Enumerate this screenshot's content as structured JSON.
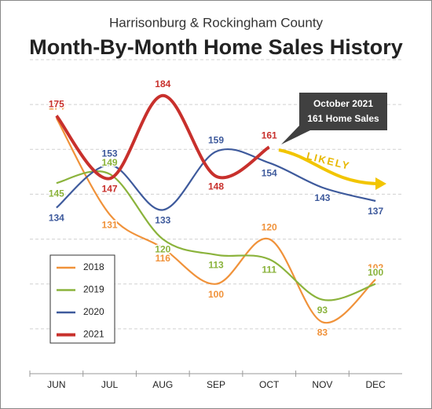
{
  "chart_data": {
    "type": "line",
    "title": "Month-By-Month Home Sales History",
    "subtitle": "Harrisonburg & Rockingham County",
    "categories": [
      "JUN",
      "JUL",
      "AUG",
      "SEP",
      "OCT",
      "NOV",
      "DEC"
    ],
    "series": [
      {
        "name": "2018",
        "color": "#f0923a",
        "values": [
          174,
          131,
          116,
          100,
          120,
          83,
          102
        ]
      },
      {
        "name": "2019",
        "color": "#8bb33c",
        "values": [
          145,
          149,
          120,
          113,
          111,
          93,
          100
        ]
      },
      {
        "name": "2020",
        "color": "#3e5a9c",
        "values": [
          134,
          153,
          133,
          159,
          154,
          143,
          137
        ]
      },
      {
        "name": "2021",
        "color": "#c8302c",
        "values": [
          175,
          147,
          184,
          148,
          161,
          null,
          null
        ]
      }
    ],
    "ylim": [
      60,
      200
    ],
    "yticks": [
      60,
      80,
      100,
      120,
      140,
      160,
      180,
      200
    ],
    "grid": true,
    "legend": "lower-left",
    "annotation": [
      "October 2021",
      "161 Home Sales"
    ],
    "forecast_label": "LIKELY"
  }
}
